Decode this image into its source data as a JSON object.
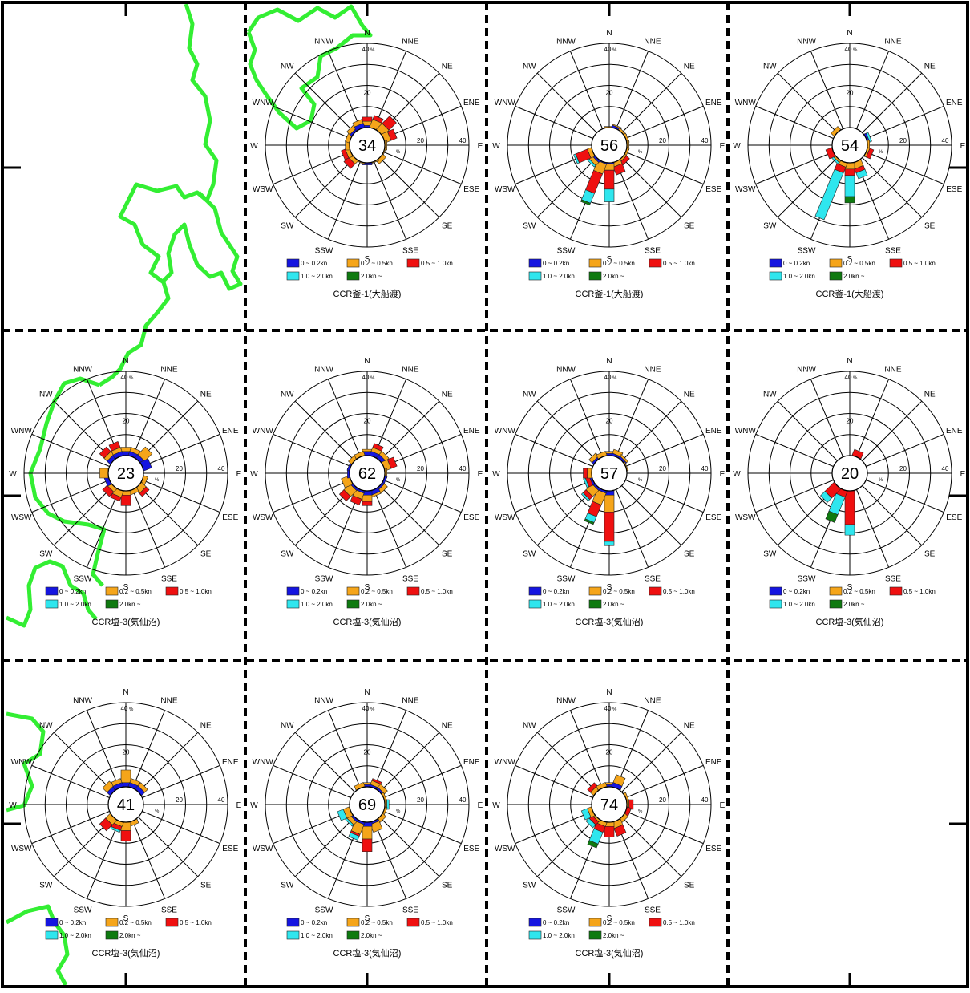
{
  "legend": {
    "items": [
      {
        "label": "0 ~ 0.2kn",
        "color": "#1515e0"
      },
      {
        "label": "0.2 ~ 0.5kn",
        "color": "#f5a51a"
      },
      {
        "label": "0.5 ~ 1.0kn",
        "color": "#ef1010"
      },
      {
        "label": "1.0 ~ 2.0kn",
        "color": "#2fe6ee"
      },
      {
        "label": "2.0kn ~",
        "color": "#0f7a10"
      }
    ]
  },
  "axis": {
    "directions": [
      "N",
      "NNE",
      "NE",
      "ENE",
      "E",
      "ESE",
      "SE",
      "SSE",
      "S",
      "SSW",
      "SW",
      "WSW",
      "W",
      "WNW",
      "NW",
      "NNW"
    ],
    "ring_labels": [
      "20",
      "40"
    ],
    "n_tick_label": "40",
    "unit": "%"
  },
  "chart_data": [
    {
      "type": "rose",
      "center_label": "34",
      "station": "CCR釜-1(大船渡)",
      "rmax": 40,
      "values": [
        [
          1,
          2,
          2
        ],
        [
          0,
          4,
          2
        ],
        [
          0,
          4,
          5
        ],
        [
          0,
          3,
          3
        ],
        [
          0,
          1,
          0
        ],
        [
          0,
          0.5,
          0
        ],
        [
          0,
          2,
          0
        ],
        [
          0,
          0.5,
          0
        ],
        [
          1,
          0,
          0
        ],
        [
          0,
          0.5,
          0
        ],
        [
          0,
          2,
          3
        ],
        [
          0,
          2,
          2
        ],
        [
          0,
          2,
          0
        ],
        [
          0,
          2,
          0
        ],
        [
          1,
          2,
          0
        ],
        [
          2,
          2,
          0
        ]
      ]
    },
    {
      "type": "rose",
      "center_label": "56",
      "station": "CCR釜-1(大船渡)",
      "rmax": 40,
      "values": [
        [
          0,
          0.5,
          0
        ],
        [
          1,
          0.5,
          0
        ],
        [
          0,
          1,
          0
        ],
        [
          0,
          1,
          0
        ],
        [
          0,
          1,
          0
        ],
        [
          0,
          1,
          0
        ],
        [
          0,
          1,
          2
        ],
        [
          0,
          2,
          4
        ],
        [
          0.5,
          3,
          9,
          6,
          0
        ],
        [
          0.5,
          5,
          10,
          5,
          1
        ],
        [
          1,
          2,
          0,
          1,
          0
        ],
        [
          0,
          2,
          6,
          1,
          0
        ],
        [
          0,
          0,
          0
        ],
        [
          0,
          0,
          0
        ],
        [
          0,
          0,
          0
        ],
        [
          0,
          0,
          0
        ]
      ]
    },
    {
      "type": "rose",
      "center_label": "54",
      "station": "CCR釜-1(大船渡)",
      "rmax": 40,
      "values": [
        [
          0,
          0,
          0
        ],
        [
          0,
          0,
          0
        ],
        [
          0,
          0,
          0
        ],
        [
          1,
          0,
          0,
          1,
          0
        ],
        [
          0,
          1,
          0,
          0,
          0
        ],
        [
          0,
          1,
          2
        ],
        [
          0,
          0,
          0
        ],
        [
          0,
          3,
          2,
          3,
          0
        ],
        [
          0,
          3,
          3,
          10,
          3
        ],
        [
          0,
          2,
          3,
          24,
          0
        ],
        [
          0,
          1,
          0,
          1,
          0
        ],
        [
          0,
          0,
          3
        ],
        [
          0,
          0,
          0
        ],
        [
          0,
          0,
          0
        ],
        [
          0,
          2,
          0
        ],
        [
          0,
          0,
          0
        ]
      ]
    },
    {
      "type": "rose",
      "center_label": "23",
      "station": "CCR塩-3(気仙沼)",
      "rmax": 40,
      "values": [
        [
          2,
          2,
          0
        ],
        [
          2,
          2,
          0
        ],
        [
          2,
          5,
          0
        ],
        [
          4,
          0,
          0
        ],
        [
          0,
          0,
          0
        ],
        [
          0,
          2,
          0
        ],
        [
          0,
          3,
          2
        ],
        [
          0,
          2,
          0
        ],
        [
          0,
          2,
          5
        ],
        [
          0,
          3,
          2
        ],
        [
          0,
          2,
          3
        ],
        [
          2,
          0,
          0
        ],
        [
          0,
          4,
          0
        ],
        [
          0,
          0,
          0
        ],
        [
          2,
          2,
          3
        ],
        [
          2,
          2,
          3
        ]
      ]
    },
    {
      "type": "rose",
      "center_label": "62",
      "station": "CCR塩-3(気仙沼)",
      "rmax": 40,
      "values": [
        [
          2,
          1,
          0
        ],
        [
          2,
          2,
          2
        ],
        [
          2,
          2,
          0
        ],
        [
          0,
          3,
          3
        ],
        [
          0,
          1,
          0
        ],
        [
          1,
          0,
          0
        ],
        [
          1,
          2,
          0
        ],
        [
          2,
          1,
          0
        ],
        [
          2,
          3,
          2
        ],
        [
          1,
          3,
          3
        ],
        [
          1,
          4,
          3
        ],
        [
          0,
          4,
          0
        ],
        [
          1,
          0,
          0
        ],
        [
          1,
          0,
          0
        ],
        [
          0,
          2,
          0
        ],
        [
          0,
          2,
          0
        ]
      ]
    },
    {
      "type": "rose",
      "center_label": "57",
      "station": "CCR塩-3(気仙沼)",
      "rmax": 40,
      "values": [
        [
          1,
          1,
          0
        ],
        [
          1,
          2,
          0
        ],
        [
          1,
          1,
          0
        ],
        [
          0,
          0.5,
          0
        ],
        [
          0,
          0,
          0
        ],
        [
          0,
          0,
          0
        ],
        [
          0,
          0,
          0
        ],
        [
          0,
          0,
          0
        ],
        [
          2,
          8,
          14,
          2,
          0
        ],
        [
          1,
          6,
          6,
          3,
          1
        ],
        [
          1,
          4,
          2,
          1,
          0
        ],
        [
          1,
          0,
          2,
          1,
          0
        ],
        [
          0,
          2,
          2
        ],
        [
          0,
          0,
          0
        ],
        [
          1,
          2,
          0
        ],
        [
          0,
          2,
          0
        ]
      ]
    },
    {
      "type": "rose",
      "center_label": "20",
      "station": "CCR塩-3(気仙沼)",
      "rmax": 40,
      "values": [
        [
          0,
          0,
          0
        ],
        [
          0,
          0,
          3
        ],
        [
          0,
          0,
          0
        ],
        [
          0,
          0,
          0
        ],
        [
          0,
          0,
          0
        ],
        [
          0,
          0,
          0
        ],
        [
          0,
          0,
          0
        ],
        [
          0,
          0,
          0
        ],
        [
          0,
          0,
          16,
          5,
          0
        ],
        [
          0,
          0,
          3,
          9,
          4
        ],
        [
          0,
          0,
          6,
          3,
          0
        ],
        [
          0,
          0,
          0
        ],
        [
          0,
          0,
          0
        ],
        [
          0,
          0,
          0
        ],
        [
          0,
          0,
          0
        ],
        [
          0,
          0,
          0
        ]
      ]
    },
    {
      "type": "rose",
      "center_label": "41",
      "station": "CCR塩-3(気仙沼)",
      "rmax": 40,
      "values": [
        [
          2,
          6,
          0
        ],
        [
          2,
          2,
          0
        ],
        [
          2,
          2,
          0
        ],
        [
          0,
          0,
          0
        ],
        [
          0,
          0,
          0
        ],
        [
          0,
          0,
          0
        ],
        [
          0,
          0,
          0
        ],
        [
          0,
          2,
          0
        ],
        [
          0,
          4,
          5
        ],
        [
          0,
          2,
          2,
          1,
          0
        ],
        [
          0,
          3,
          4
        ],
        [
          0,
          0,
          0
        ],
        [
          0,
          0,
          0
        ],
        [
          0,
          0,
          0
        ],
        [
          2,
          3,
          0
        ],
        [
          2,
          2,
          0
        ]
      ]
    },
    {
      "type": "rose",
      "center_label": "69",
      "station": "CCR塩-3(気仙沼)",
      "rmax": 40,
      "values": [
        [
          1,
          1,
          0
        ],
        [
          1,
          2,
          1
        ],
        [
          1,
          2,
          0
        ],
        [
          0,
          1,
          0
        ],
        [
          0,
          1,
          0,
          1,
          0
        ],
        [
          0,
          1,
          0
        ],
        [
          0,
          2,
          0
        ],
        [
          1,
          4,
          0
        ],
        [
          2,
          6,
          6
        ],
        [
          1,
          5,
          1,
          2,
          0
        ],
        [
          1,
          2,
          0,
          1,
          0
        ],
        [
          0,
          3,
          0,
          3,
          0
        ],
        [
          0,
          0,
          0
        ],
        [
          0,
          0,
          0
        ],
        [
          0,
          0,
          0
        ],
        [
          0,
          2,
          0
        ]
      ]
    },
    {
      "type": "rose",
      "center_label": "74",
      "station": "CCR塩-3(気仙沼)",
      "rmax": 40,
      "values": [
        [
          1,
          1,
          0
        ],
        [
          2,
          4,
          0
        ],
        [
          0,
          0,
          0
        ],
        [
          0,
          1,
          0
        ],
        [
          0,
          1,
          2
        ],
        [
          0,
          0,
          2
        ],
        [
          0,
          2,
          0
        ],
        [
          0,
          3,
          4
        ],
        [
          0,
          2,
          5
        ],
        [
          0,
          2,
          3,
          6,
          2
        ],
        [
          0,
          1,
          2,
          2,
          0
        ],
        [
          0,
          2,
          0,
          3,
          0
        ],
        [
          0,
          0,
          0
        ],
        [
          0,
          0,
          0
        ],
        [
          0,
          2,
          2
        ],
        [
          0,
          2,
          0
        ]
      ]
    }
  ]
}
